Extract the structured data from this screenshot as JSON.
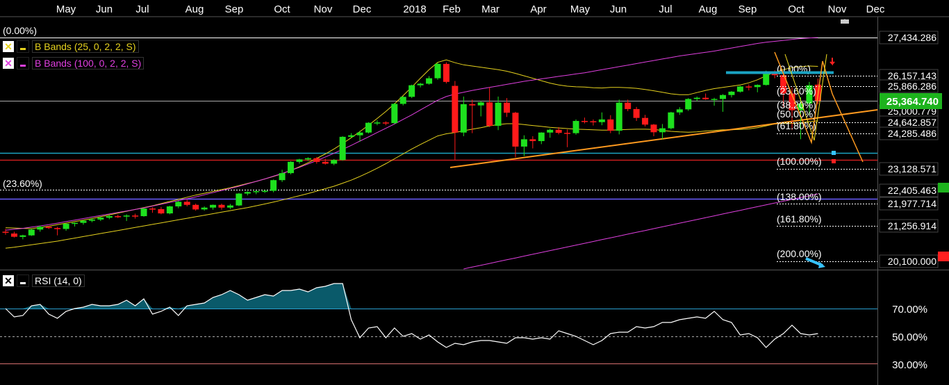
{
  "x_axis": {
    "labels": [
      "May",
      "Jun",
      "Jul",
      "Aug",
      "Sep",
      "Oct",
      "Nov",
      "Dec",
      "2018",
      "Feb",
      "Mar",
      "Apr",
      "May",
      "Jun",
      "Jul",
      "Aug",
      "Sep",
      "Oct",
      "Nov",
      "Dec"
    ]
  },
  "price_axis": {
    "labels": [
      "27,434.286",
      "26,157.143",
      "25,866.286",
      "25,000.779",
      "24,642.857",
      "24,285.486",
      "23,128.571",
      "22,405.463",
      "21,977.714",
      "21,256.914",
      "20,100.000"
    ],
    "current": "25,364.740",
    "current_color": "#1db31d"
  },
  "rsi_axis": {
    "labels": [
      "70.00%",
      "50.00%",
      "30.00%"
    ]
  },
  "legend": {
    "bb1": {
      "label": "B Bands (25, 0, 2, 2, S)",
      "color": "#e6d21e"
    },
    "bb2": {
      "label": "B Bands (100, 0, 2, 2, S)",
      "color": "#e040e0"
    },
    "rsi": {
      "label": "RSI (14, 0)"
    }
  },
  "annotations": {
    "top_pct": "(0.00%)",
    "left_pct": "(23.60%)",
    "fib": [
      "(0.00%)",
      "(23.60%)",
      "(38.20%)",
      "(50.00%)",
      "(61.80%)",
      "(100.00%)",
      "(138.00%)",
      "(161.80%)",
      "(200.00%)"
    ]
  },
  "colors": {
    "up": "#1ee01e",
    "down": "#ff1a1a",
    "rsi_fill": "#0a5a6a",
    "grid": "#444444"
  },
  "chart_data": {
    "type": "candlestick",
    "price_scale": {
      "min": 19850,
      "max": 27434.286
    },
    "rsi_scale": {
      "min": 24,
      "max": 84
    },
    "candles": [
      {
        "o": 21070,
        "h": 21160,
        "l": 20970,
        "c": 21055
      },
      {
        "o": 21010,
        "h": 21070,
        "l": 20880,
        "c": 20905
      },
      {
        "o": 20900,
        "h": 20970,
        "l": 20820,
        "c": 20950
      },
      {
        "o": 20950,
        "h": 21170,
        "l": 20930,
        "c": 21140
      },
      {
        "o": 21140,
        "h": 21270,
        "l": 21070,
        "c": 21230
      },
      {
        "o": 21230,
        "h": 21260,
        "l": 21160,
        "c": 21190
      },
      {
        "o": 21190,
        "h": 21230,
        "l": 20950,
        "c": 21160
      },
      {
        "o": 21160,
        "h": 21340,
        "l": 21100,
        "c": 21330
      },
      {
        "o": 21330,
        "h": 21370,
        "l": 21240,
        "c": 21360
      },
      {
        "o": 21360,
        "h": 21450,
        "l": 21300,
        "c": 21430
      },
      {
        "o": 21430,
        "h": 21520,
        "l": 21380,
        "c": 21470
      },
      {
        "o": 21470,
        "h": 21560,
        "l": 21420,
        "c": 21530
      },
      {
        "o": 21530,
        "h": 21620,
        "l": 21480,
        "c": 21580
      },
      {
        "o": 21580,
        "h": 21630,
        "l": 21520,
        "c": 21570
      },
      {
        "o": 21570,
        "h": 21640,
        "l": 21420,
        "c": 21600
      },
      {
        "o": 21600,
        "h": 21660,
        "l": 21500,
        "c": 21590
      },
      {
        "o": 21580,
        "h": 21830,
        "l": 21560,
        "c": 21830
      },
      {
        "o": 21830,
        "h": 21870,
        "l": 21690,
        "c": 21810
      },
      {
        "o": 21810,
        "h": 21880,
        "l": 21640,
        "c": 21670
      },
      {
        "o": 21670,
        "h": 21920,
        "l": 21640,
        "c": 21900
      },
      {
        "o": 21900,
        "h": 22080,
        "l": 21840,
        "c": 22050
      },
      {
        "o": 22050,
        "h": 22120,
        "l": 21900,
        "c": 21950
      },
      {
        "o": 21950,
        "h": 21990,
        "l": 21760,
        "c": 21800
      },
      {
        "o": 21800,
        "h": 21900,
        "l": 21760,
        "c": 21860
      },
      {
        "o": 21860,
        "h": 21960,
        "l": 21790,
        "c": 21950
      },
      {
        "o": 21950,
        "h": 21990,
        "l": 21790,
        "c": 21860
      },
      {
        "o": 21860,
        "h": 21980,
        "l": 21810,
        "c": 21930
      },
      {
        "o": 21930,
        "h": 22340,
        "l": 21910,
        "c": 22320
      },
      {
        "o": 22320,
        "h": 22400,
        "l": 22260,
        "c": 22370
      },
      {
        "o": 22370,
        "h": 22420,
        "l": 22300,
        "c": 22400
      },
      {
        "o": 22400,
        "h": 22440,
        "l": 22340,
        "c": 22410
      },
      {
        "o": 22410,
        "h": 22780,
        "l": 22360,
        "c": 22760
      },
      {
        "o": 22760,
        "h": 23100,
        "l": 22700,
        "c": 22990
      },
      {
        "o": 22990,
        "h": 23380,
        "l": 22950,
        "c": 23360
      },
      {
        "o": 23360,
        "h": 23460,
        "l": 23300,
        "c": 23440
      },
      {
        "o": 23440,
        "h": 23510,
        "l": 23390,
        "c": 23480
      },
      {
        "o": 23480,
        "h": 23520,
        "l": 23300,
        "c": 23360
      },
      {
        "o": 23360,
        "h": 23460,
        "l": 23270,
        "c": 23300
      },
      {
        "o": 23300,
        "h": 23450,
        "l": 23250,
        "c": 23420
      },
      {
        "o": 23420,
        "h": 24200,
        "l": 23400,
        "c": 24180
      },
      {
        "o": 24180,
        "h": 24300,
        "l": 24150,
        "c": 24230
      },
      {
        "o": 24230,
        "h": 24380,
        "l": 24020,
        "c": 24320
      },
      {
        "o": 24320,
        "h": 24660,
        "l": 24290,
        "c": 24640
      },
      {
        "o": 24640,
        "h": 24720,
        "l": 24560,
        "c": 24650
      },
      {
        "o": 24650,
        "h": 24690,
        "l": 24560,
        "c": 24630
      },
      {
        "o": 24630,
        "h": 25290,
        "l": 24600,
        "c": 25260
      },
      {
        "o": 25260,
        "h": 25510,
        "l": 25210,
        "c": 25490
      },
      {
        "o": 25490,
        "h": 25890,
        "l": 25450,
        "c": 25870
      },
      {
        "o": 25870,
        "h": 25950,
        "l": 25800,
        "c": 25920
      },
      {
        "o": 25920,
        "h": 26170,
        "l": 25890,
        "c": 26100
      },
      {
        "o": 26100,
        "h": 26620,
        "l": 26050,
        "c": 26570
      },
      {
        "o": 26570,
        "h": 26620,
        "l": 25930,
        "c": 25980
      },
      {
        "o": 25850,
        "h": 26010,
        "l": 23430,
        "c": 24320
      },
      {
        "o": 24320,
        "h": 25500,
        "l": 24200,
        "c": 25250
      },
      {
        "o": 25250,
        "h": 25400,
        "l": 24300,
        "c": 25210
      },
      {
        "o": 25210,
        "h": 25350,
        "l": 24850,
        "c": 25310
      },
      {
        "o": 25310,
        "h": 25800,
        "l": 24500,
        "c": 24540
      },
      {
        "o": 24540,
        "h": 25500,
        "l": 24400,
        "c": 25300
      },
      {
        "o": 25300,
        "h": 25450,
        "l": 24830,
        "c": 24970
      },
      {
        "o": 24970,
        "h": 25000,
        "l": 23510,
        "c": 23860
      },
      {
        "o": 23860,
        "h": 24230,
        "l": 23550,
        "c": 24100
      },
      {
        "o": 24100,
        "h": 24200,
        "l": 23800,
        "c": 24040
      },
      {
        "o": 24040,
        "h": 24330,
        "l": 23940,
        "c": 24320
      },
      {
        "o": 24320,
        "h": 24450,
        "l": 24150,
        "c": 24410
      },
      {
        "o": 24410,
        "h": 24500,
        "l": 24260,
        "c": 24310
      },
      {
        "o": 24310,
        "h": 24420,
        "l": 23840,
        "c": 24300
      },
      {
        "o": 24300,
        "h": 24750,
        "l": 24250,
        "c": 24700
      },
      {
        "o": 24700,
        "h": 24810,
        "l": 24620,
        "c": 24690
      },
      {
        "o": 24690,
        "h": 24750,
        "l": 24550,
        "c": 24660
      },
      {
        "o": 24660,
        "h": 24980,
        "l": 24560,
        "c": 24750
      },
      {
        "o": 24750,
        "h": 24890,
        "l": 24300,
        "c": 24380
      },
      {
        "o": 24380,
        "h": 25400,
        "l": 24260,
        "c": 25300
      },
      {
        "o": 25300,
        "h": 25400,
        "l": 25020,
        "c": 25090
      },
      {
        "o": 25090,
        "h": 25160,
        "l": 24700,
        "c": 24800
      },
      {
        "o": 24800,
        "h": 24900,
        "l": 24520,
        "c": 24580
      },
      {
        "o": 24580,
        "h": 24600,
        "l": 24200,
        "c": 24330
      },
      {
        "o": 24330,
        "h": 24600,
        "l": 24100,
        "c": 24460
      },
      {
        "o": 24460,
        "h": 25000,
        "l": 24420,
        "c": 24980
      },
      {
        "o": 24980,
        "h": 25150,
        "l": 24900,
        "c": 25080
      },
      {
        "o": 25080,
        "h": 25450,
        "l": 25030,
        "c": 25420
      },
      {
        "o": 25420,
        "h": 25500,
        "l": 25350,
        "c": 25460
      },
      {
        "o": 25460,
        "h": 25600,
        "l": 25390,
        "c": 25410
      },
      {
        "o": 25410,
        "h": 25460,
        "l": 25200,
        "c": 25420
      },
      {
        "o": 25420,
        "h": 25580,
        "l": 25000,
        "c": 25550
      },
      {
        "o": 25550,
        "h": 25680,
        "l": 25470,
        "c": 25660
      },
      {
        "o": 25660,
        "h": 25850,
        "l": 25630,
        "c": 25830
      },
      {
        "o": 25830,
        "h": 25900,
        "l": 25700,
        "c": 25810
      },
      {
        "o": 25810,
        "h": 25900,
        "l": 25640,
        "c": 25880
      },
      {
        "o": 25880,
        "h": 26350,
        "l": 25860,
        "c": 26300
      },
      {
        "o": 26320,
        "h": 26360,
        "l": 26100,
        "c": 26200
      },
      {
        "o": 26200,
        "h": 26280,
        "l": 25160,
        "c": 25600
      },
      {
        "o": 25600,
        "h": 25800,
        "l": 24400,
        "c": 25050
      },
      {
        "o": 25050,
        "h": 25480,
        "l": 24100,
        "c": 25270
      },
      {
        "o": 25270,
        "h": 25980,
        "l": 24900,
        "c": 25870
      },
      {
        "o": 25890,
        "h": 26090,
        "l": 25250,
        "c": 25360
      }
    ],
    "bb25_upper": [
      21200,
      21190,
      21180,
      21170,
      21210,
      21250,
      21300,
      21350,
      21400,
      21450,
      21500,
      21560,
      21620,
      21680,
      21740,
      21800,
      21860,
      21920,
      21990,
      22060,
      22130,
      22200,
      22270,
      22330,
      22390,
      22450,
      22510,
      22580,
      22650,
      22720,
      22800,
      22880,
      22970,
      23080,
      23200,
      23330,
      23470,
      23620,
      23780,
      23960,
      24150,
      24350,
      24560,
      24780,
      25010,
      25260,
      25530,
      25810,
      26100,
      26380,
      26620,
      26700,
      26610,
      26540,
      26500,
      26460,
      26420,
      26380,
      26330,
      26260,
      26180,
      26100,
      26020,
      25940,
      25880,
      25840,
      25820,
      25810,
      25790,
      25780,
      25800,
      25800,
      25790,
      25770,
      25730,
      25690,
      25640,
      25590,
      25560,
      25560,
      25630,
      25700,
      25760,
      25800,
      25840,
      25880,
      25950,
      26050,
      26180,
      26300,
      26380,
      26450,
      26480,
      26500,
      26490
    ],
    "bb25_lower": [
      20530,
      20560,
      20600,
      20640,
      20680,
      20720,
      20760,
      20810,
      20860,
      20910,
      20960,
      21010,
      21060,
      21110,
      21160,
      21210,
      21260,
      21310,
      21360,
      21410,
      21460,
      21510,
      21560,
      21610,
      21660,
      21710,
      21760,
      21810,
      21860,
      21920,
      21980,
      22040,
      22110,
      22180,
      22250,
      22320,
      22400,
      22480,
      22560,
      22660,
      22760,
      22880,
      23010,
      23150,
      23300,
      23460,
      23620,
      23780,
      23930,
      24070,
      24210,
      24280,
      24320,
      24380,
      24430,
      24480,
      24540,
      24580,
      24610,
      24610,
      24580,
      24550,
      24520,
      24490,
      24470,
      24450,
      24430,
      24420,
      24410,
      24400,
      24400,
      24410,
      24420,
      24430,
      24430,
      24420,
      24390,
      24360,
      24340,
      24330,
      24340,
      24370,
      24390,
      24410,
      24410,
      24420,
      24440,
      24480,
      24540,
      24600,
      24620,
      24620,
      24640,
      24680,
      24700
    ],
    "bb100_upper": [
      21120,
      21150,
      21180,
      21220,
      21260,
      21300,
      21350,
      21400,
      21450,
      21500,
      21550,
      21600,
      21650,
      21700,
      21750,
      21800,
      21850,
      21910,
      21970,
      22030,
      22090,
      22150,
      22210,
      22280,
      22350,
      22420,
      22490,
      22560,
      22640,
      22720,
      22800,
      22890,
      22980,
      23080,
      23180,
      23290,
      23400,
      23520,
      23640,
      23770,
      23900,
      24040,
      24180,
      24320,
      24460,
      24600,
      24750,
      24900,
      25060,
      25220,
      25380,
      25500,
      25580,
      25640,
      25700,
      25750,
      25800,
      25850,
      25900,
      25950,
      26000,
      26040,
      26080,
      26120,
      26160,
      26200,
      26240,
      26280,
      26330,
      26380,
      26430,
      26480,
      26530,
      26580,
      26630,
      26680,
      26730,
      26780,
      26830,
      26870,
      26910,
      26950,
      26990,
      27040,
      27090,
      27140,
      27190,
      27240,
      27280,
      27310,
      27340,
      27370,
      27400,
      27420,
      27434
    ],
    "bb100_lower": [
      null,
      null,
      null,
      null,
      null,
      null,
      null,
      null,
      null,
      null,
      null,
      null,
      null,
      null,
      null,
      null,
      null,
      null,
      null,
      null,
      null,
      null,
      null,
      null,
      null,
      null,
      null,
      null,
      null,
      null,
      null,
      null,
      null,
      null,
      null,
      null,
      null,
      null,
      null,
      null,
      null,
      null,
      null,
      null,
      null,
      null,
      null,
      null,
      null,
      null,
      null,
      null,
      null,
      19850,
      19910,
      19970,
      20030,
      20090,
      20150,
      20210,
      20270,
      20330,
      20390,
      20450,
      20510,
      20570,
      20630,
      20690,
      20750,
      20810,
      20870,
      20930,
      20990,
      21050,
      21110,
      21170,
      21230,
      21290,
      21350,
      21410,
      21470,
      21530,
      21590,
      21650,
      21710,
      21770,
      21830,
      21890,
      21950,
      22010,
      22070,
      22130,
      22190,
      22250,
      22310
    ],
    "rsi": [
      70,
      64,
      65,
      72,
      73,
      66,
      63,
      68,
      70,
      71,
      73,
      72,
      72,
      73,
      76,
      72,
      77,
      66,
      68,
      71,
      65,
      72,
      73,
      74,
      78,
      80,
      83,
      80,
      76,
      78,
      80,
      79,
      83,
      83,
      84,
      82,
      85,
      86,
      88,
      88,
      62,
      49,
      56,
      57,
      49,
      56,
      50,
      52,
      48,
      51,
      46,
      42,
      45,
      44,
      46,
      47,
      47,
      46,
      45,
      49,
      49,
      48,
      49,
      48,
      54,
      52,
      50,
      47,
      44,
      47,
      52,
      53,
      53,
      57,
      56,
      57,
      60,
      60,
      62,
      63,
      64,
      63,
      68,
      62,
      60,
      51,
      52,
      49,
      42,
      48,
      52,
      58,
      52,
      51,
      52
    ]
  }
}
